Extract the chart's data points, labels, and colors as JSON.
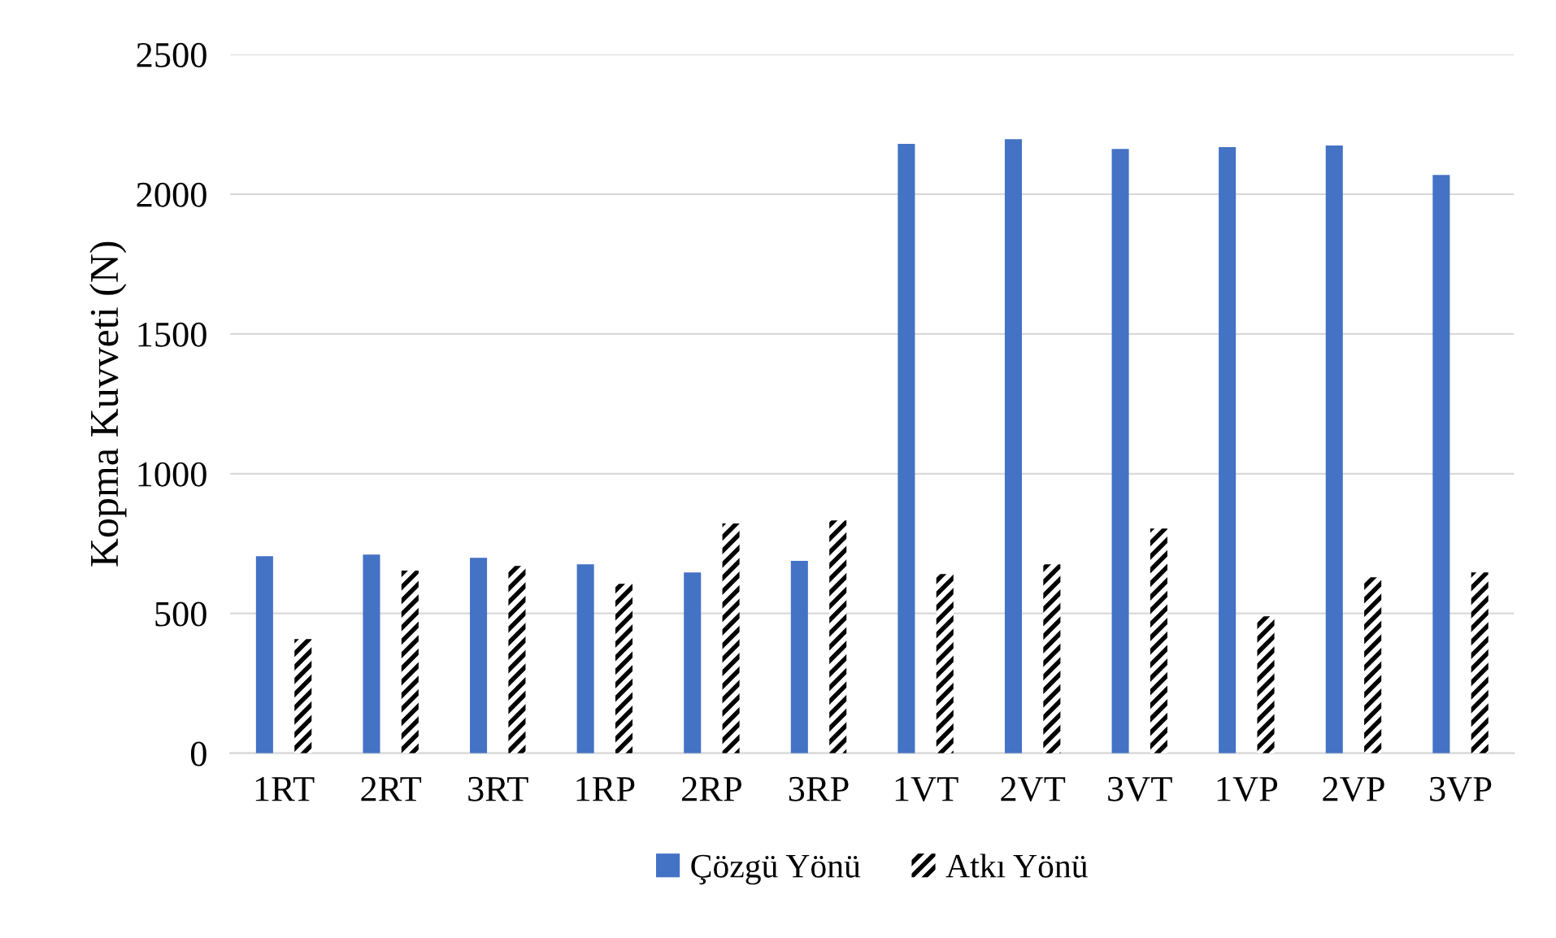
{
  "chart_data": {
    "type": "bar",
    "ylabel": "Kopma Kuvveti (N)",
    "categories": [
      "1RT",
      "2RT",
      "3RT",
      "1RP",
      "2RP",
      "3RP",
      "1VT",
      "2VT",
      "3VT",
      "1VP",
      "2VP",
      "3VP"
    ],
    "series": [
      {
        "name": "Çözgü Yönü",
        "color": "#4472c4",
        "values": [
          705,
          711,
          699,
          676,
          647,
          688,
          2180,
          2197,
          2162,
          2168,
          2174,
          2069
        ]
      },
      {
        "name": "Atkı Yönü",
        "color": "#000000",
        "values": [
          408,
          653,
          670,
          606,
          822,
          833,
          641,
          676,
          804,
          490,
          629,
          647
        ]
      }
    ],
    "ylim": [
      0,
      2500
    ],
    "yticks": [
      0,
      500,
      1000,
      1500,
      2000,
      2500
    ],
    "grid": "y",
    "legend": "bottom"
  }
}
